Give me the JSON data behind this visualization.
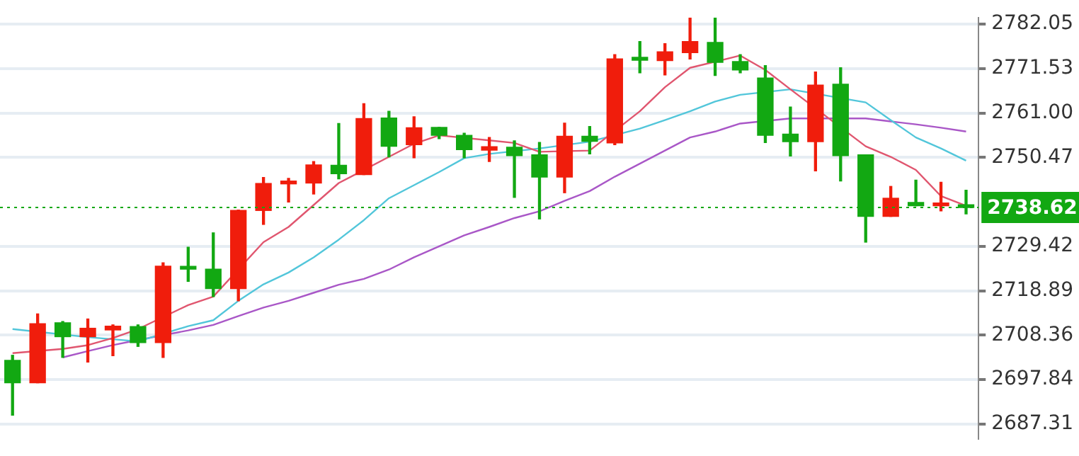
{
  "chart_data": {
    "type": "candlestick",
    "categories": [
      null,
      null,
      null,
      null,
      null,
      null,
      null,
      null,
      null,
      null,
      null,
      null,
      null,
      null,
      null,
      null,
      null,
      null,
      null,
      null,
      null,
      null,
      null,
      null,
      null,
      null,
      null,
      null,
      null,
      null,
      null,
      null,
      null,
      null,
      null,
      null,
      null,
      null,
      null
    ],
    "ohlc": [
      [
        2702.4,
        2703.6,
        2689.4,
        2697.1
      ],
      [
        2697.1,
        2713.4,
        2697.1,
        2711.1
      ],
      [
        2711.3,
        2711.6,
        2703.1,
        2708.0
      ],
      [
        2708.0,
        2712.2,
        2702.0,
        2710.0
      ],
      [
        2709.6,
        2710.8,
        2703.5,
        2710.5
      ],
      [
        2710.4,
        2710.8,
        2705.7,
        2706.6
      ],
      [
        2706.6,
        2725.5,
        2703.1,
        2724.7
      ],
      [
        2724.4,
        2729.2,
        2721.1,
        2724.0
      ],
      [
        2724.0,
        2732.6,
        2717.5,
        2719.4
      ],
      [
        2719.4,
        2738.0,
        2716.5,
        2737.9
      ],
      [
        2737.9,
        2745.7,
        2734.6,
        2744.3
      ],
      [
        2744.2,
        2745.5,
        2739.9,
        2744.6
      ],
      [
        2744.4,
        2749.5,
        2741.8,
        2748.7
      ],
      [
        2748.6,
        2758.5,
        2745.4,
        2746.6
      ],
      [
        2746.4,
        2763.2,
        2746.4,
        2759.7
      ],
      [
        2759.8,
        2761.4,
        2750.6,
        2753.1
      ],
      [
        2753.5,
        2760.1,
        2750.4,
        2757.5
      ],
      [
        2757.6,
        2757.6,
        2754.9,
        2755.7
      ],
      [
        2755.7,
        2756.2,
        2750.4,
        2752.3
      ],
      [
        2752.2,
        2755.2,
        2749.5,
        2753.0
      ],
      [
        2752.9,
        2754.4,
        2741.0,
        2750.9
      ],
      [
        2751.1,
        2754.0,
        2735.9,
        2745.8
      ],
      [
        2745.8,
        2758.6,
        2742.1,
        2755.5
      ],
      [
        2755.5,
        2757.8,
        2751.3,
        2754.3
      ],
      [
        2753.9,
        2774.8,
        2753.5,
        2773.8
      ],
      [
        2774.0,
        2777.9,
        2770.5,
        2773.5
      ],
      [
        2773.4,
        2777.4,
        2770.0,
        2775.5
      ],
      [
        2775.3,
        2783.5,
        2773.8,
        2777.9
      ],
      [
        2777.7,
        2783.5,
        2769.9,
        2773.0
      ],
      [
        2773.2,
        2774.8,
        2770.5,
        2771.2
      ],
      [
        2769.3,
        2772.2,
        2754.0,
        2755.7
      ],
      [
        2756.0,
        2762.4,
        2750.8,
        2754.2
      ],
      [
        2754.2,
        2770.7,
        2747.3,
        2767.6
      ],
      [
        2767.8,
        2771.7,
        2744.9,
        2750.9
      ],
      [
        2751.1,
        2751.1,
        2730.4,
        2736.5
      ],
      [
        2736.5,
        2743.6,
        2736.5,
        2740.8
      ],
      [
        2739.8,
        2745.1,
        2739.0,
        2739.0
      ],
      [
        2739.0,
        2744.6,
        2737.8,
        2739.3
      ],
      [
        2739.1,
        2742.7,
        2737.1,
        2738.6
      ]
    ],
    "colors": [
      "#12a812",
      "#f01d0c",
      "#12a812",
      "#f01d0c",
      "#f01d0c",
      "#12a812",
      "#f01d0c",
      "#12a812",
      "#12a812",
      "#f01d0c",
      "#f01d0c",
      "#f01d0c",
      "#f01d0c",
      "#12a812",
      "#f01d0c",
      "#12a812",
      "#f01d0c",
      "#12a812",
      "#12a812",
      "#f01d0c",
      "#12a812",
      "#12a812",
      "#f01d0c",
      "#12a812",
      "#f01d0c",
      "#12a812",
      "#f01d0c",
      "#f01d0c",
      "#12a812",
      "#12a812",
      "#12a812",
      "#12a812",
      "#f01d0c",
      "#12a812",
      "#12a812",
      "#f01d0c",
      "#12a812",
      "#f01d0c",
      "#12a812"
    ],
    "series": [
      {
        "type": "line",
        "color": "#e0566f",
        "values": [
          2704.1,
          null,
          2705.1,
          2706.0,
          2707.7,
          2709.8,
          null,
          2715.5,
          2717.5,
          null,
          2730.4,
          2734.0,
          2739.2,
          2744.4,
          null,
          2750.6,
          2753.7,
          2755.7,
          null,
          2754.5,
          2753.9,
          2751.8,
          null,
          2752.1,
          null,
          2761.4,
          2767.1,
          2771.7,
          null,
          2774.6,
          2771.2,
          2766.6,
          null,
          null,
          2753.1,
          2750.6,
          2747.5,
          2741.3,
          2739.0
        ]
      },
      {
        "type": "line",
        "color": "#52c6da",
        "values": [
          2709.8,
          null,
          null,
          2707.9,
          2707.4,
          2706.9,
          null,
          2710.5,
          2711.9,
          2716.5,
          2720.4,
          2723.2,
          2726.8,
          2731.0,
          2735.6,
          2740.8,
          2743.9,
          2747.0,
          2750.3,
          2751.3,
          null,
          2752.6,
          null,
          2754.2,
          null,
          2757.3,
          2759.3,
          2761.4,
          2763.7,
          2765.3,
          null,
          2766.6,
          null,
          null,
          2763.5,
          2759.3,
          2755.2,
          2752.6,
          2749.7
        ]
      },
      {
        "type": "line",
        "color": "#a957c7",
        "values": [
          null,
          null,
          2703.1,
          2704.6,
          2706.0,
          2707.2,
          null,
          2709.5,
          2710.8,
          2712.9,
          2714.9,
          2716.5,
          2718.4,
          2720.3,
          2721.7,
          2723.9,
          2726.8,
          2729.4,
          2732.0,
          2734.0,
          2736.1,
          2737.7,
          2740.2,
          2742.5,
          2745.9,
          2749.0,
          2752.1,
          2755.2,
          2756.6,
          2758.5,
          null,
          2759.7,
          null,
          null,
          2759.7,
          2759.0,
          2758.3,
          2757.5,
          2756.6
        ]
      }
    ],
    "ylim": [
      2683.9,
      2783.6
    ],
    "yticks": [
      2687.31,
      2697.84,
      2708.36,
      2718.89,
      2729.42,
      2750.47,
      {
        "value": 2761,
        "label": "2761.00"
      },
      2771.53,
      2782.05
    ],
    "grid": "y",
    "tick_labels": "y",
    "ref_lines": [
      {
        "axis": "y",
        "value": 2738.62,
        "label": "2738.62",
        "color": "#12a812",
        "line_style": "dotted"
      }
    ]
  }
}
